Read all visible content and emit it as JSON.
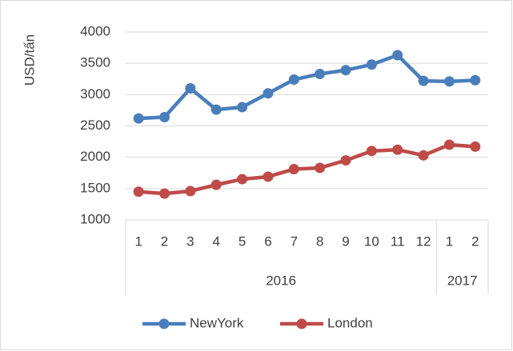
{
  "chart_data": {
    "type": "line",
    "y_axis_label": "USD/tấn",
    "categories": [
      "1",
      "2",
      "3",
      "4",
      "5",
      "6",
      "7",
      "8",
      "9",
      "10",
      "11",
      "12",
      "1",
      "2"
    ],
    "category_groups": [
      {
        "label": "2016",
        "size": 12
      },
      {
        "label": "2017",
        "size": 2
      }
    ],
    "series": [
      {
        "name": "NewYork",
        "color": "#4a7ebb",
        "values": [
          2620,
          2640,
          3100,
          2760,
          2800,
          3020,
          3240,
          3330,
          3390,
          3480,
          3630,
          3220,
          3210,
          3230
        ]
      },
      {
        "name": "London",
        "color": "#be4b48",
        "values": [
          1450,
          1420,
          1460,
          1560,
          1650,
          1690,
          1810,
          1830,
          1950,
          2100,
          2120,
          2030,
          2200,
          2170
        ]
      }
    ],
    "ylim": [
      1000,
      4000
    ],
    "yticks": [
      1000,
      1500,
      2000,
      2500,
      3000,
      3500,
      4000
    ],
    "grid": true,
    "legend": "bottom"
  }
}
